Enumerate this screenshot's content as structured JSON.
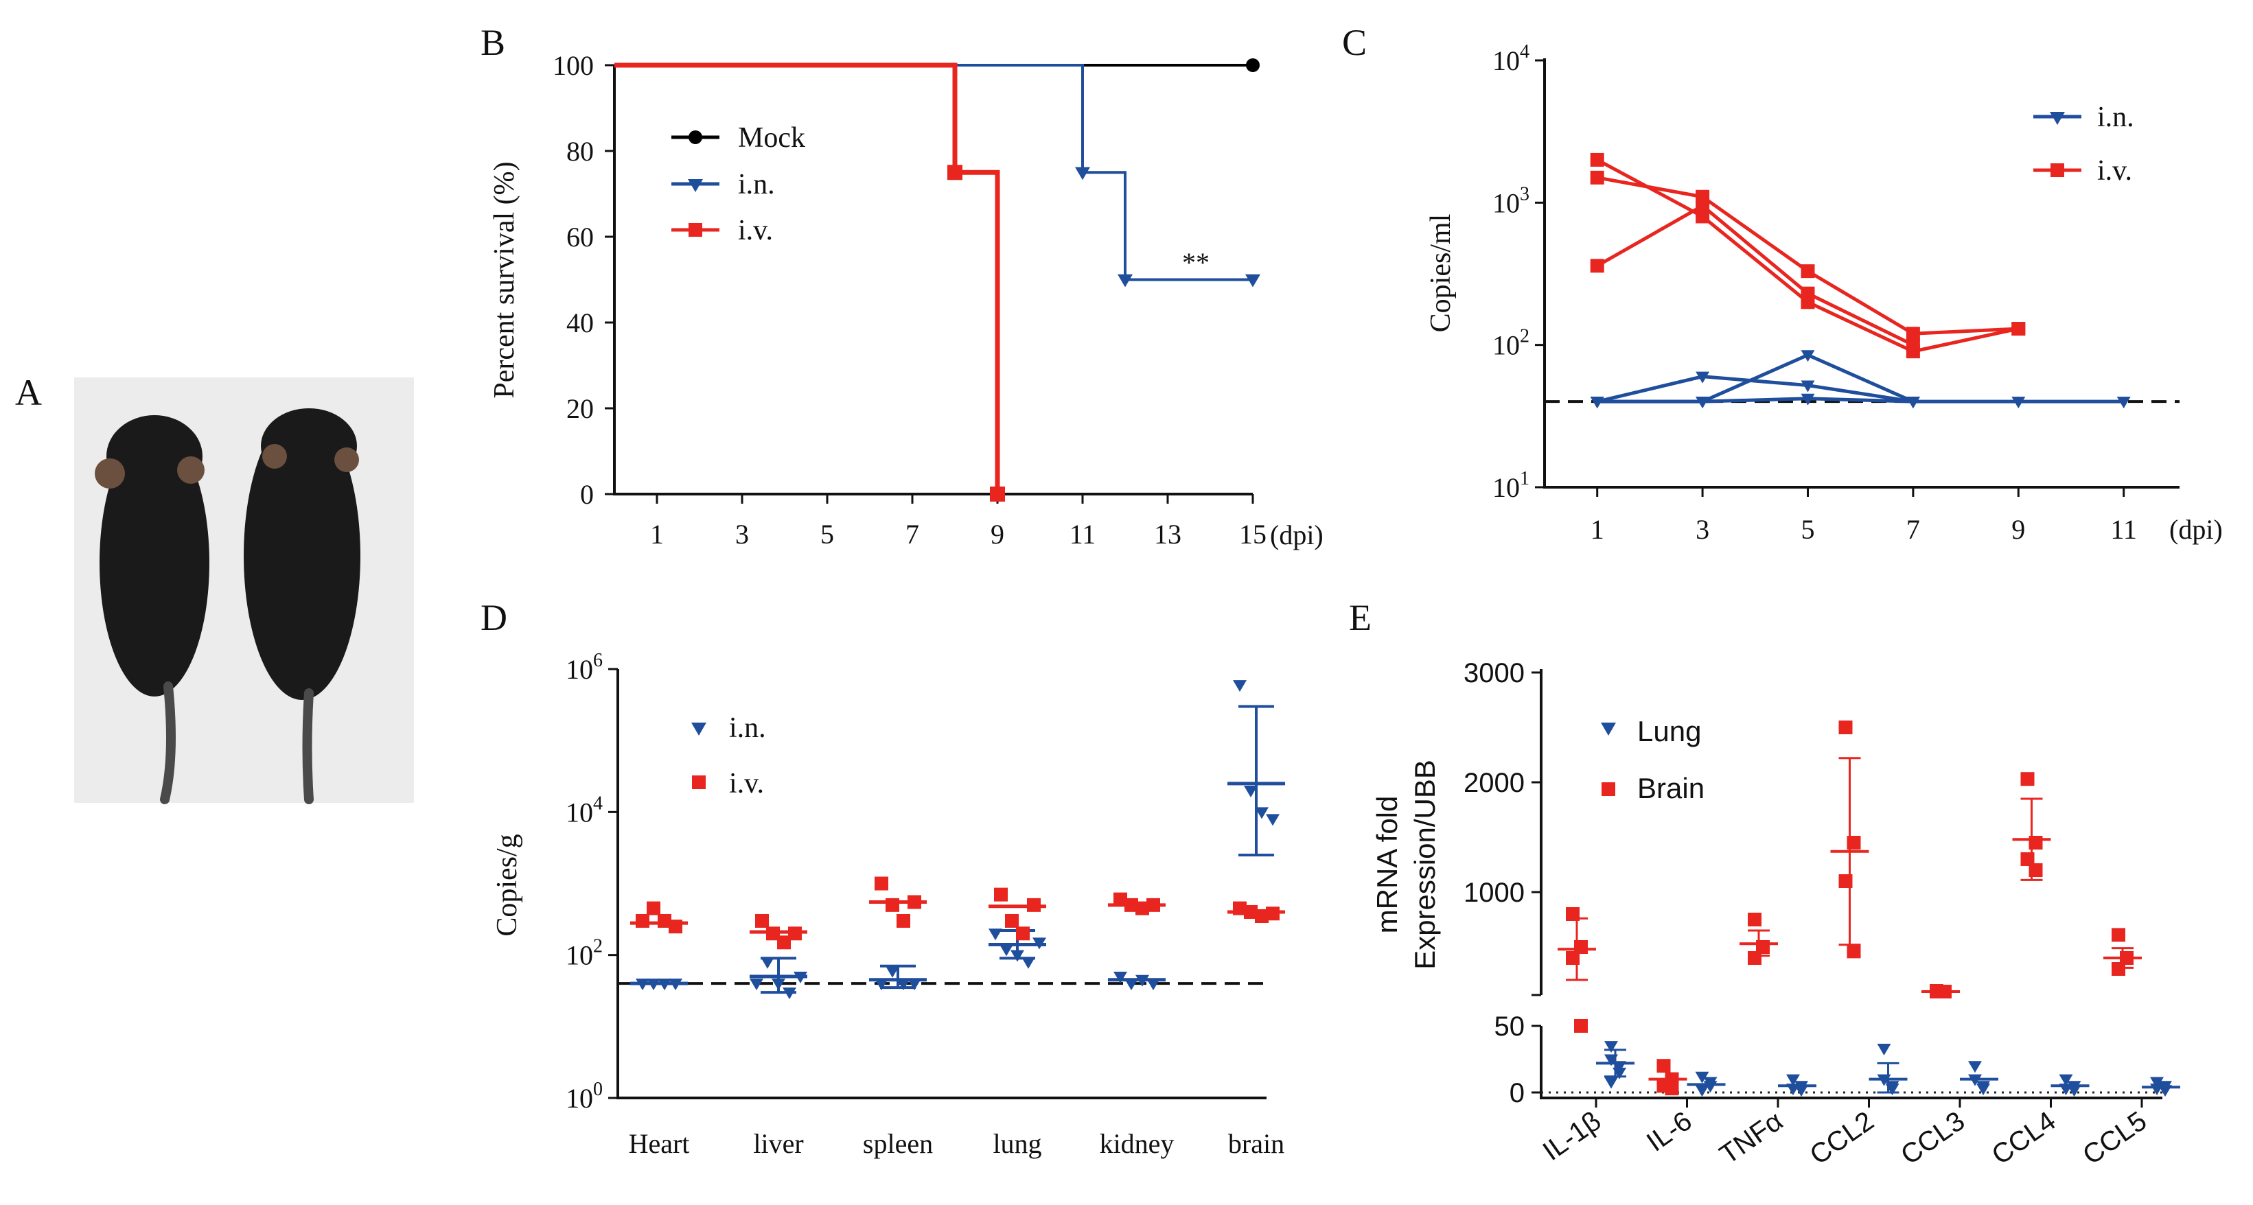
{
  "colors": {
    "mock": "#000000",
    "in": "#1f4e9c",
    "iv": "#e8251f",
    "lung": "#1f4e9c",
    "brain": "#e8251f",
    "photo_bg": "#ececec",
    "mouse": "#1a1a1a"
  },
  "chart_data": [
    {
      "panel": "A",
      "type": "image",
      "subject": "two mice, photograph"
    },
    {
      "panel": "B",
      "type": "line",
      "ylabel": "Percent survival (%)",
      "xlabel": "(dpi)",
      "xticks": [
        "1",
        "3",
        "5",
        "7",
        "9",
        "11",
        "13",
        "15"
      ],
      "yticks": [
        "0",
        "20",
        "40",
        "60",
        "80",
        "100"
      ],
      "xlim": [
        0,
        15
      ],
      "ylim": [
        0,
        100
      ],
      "annotation": "**",
      "series": [
        {
          "name": "Mock",
          "key": "mock",
          "marker": "circle",
          "steps": [
            [
              0,
              100
            ],
            [
              15,
              100
            ]
          ],
          "points": [
            [
              15,
              100
            ]
          ]
        },
        {
          "name": "i.n.",
          "key": "in",
          "marker": "triangle-down",
          "steps": [
            [
              0,
              100
            ],
            [
              11,
              100
            ],
            [
              11,
              75
            ],
            [
              12,
              75
            ],
            [
              12,
              50
            ],
            [
              15,
              50
            ]
          ],
          "points": [
            [
              11,
              75
            ],
            [
              12,
              50
            ],
            [
              15,
              50
            ]
          ]
        },
        {
          "name": "i.v.",
          "key": "iv",
          "marker": "square",
          "steps": [
            [
              0,
              100
            ],
            [
              8,
              100
            ],
            [
              8,
              75
            ],
            [
              9,
              75
            ],
            [
              9,
              0
            ]
          ],
          "points": [
            [
              8,
              75
            ],
            [
              9,
              0
            ]
          ]
        }
      ]
    },
    {
      "panel": "C",
      "type": "line",
      "ylabel": "Copies/ml",
      "xlabel": "(dpi)",
      "yscale": "log",
      "ylim": [
        10,
        10000
      ],
      "yticks": [
        {
          "base": "10",
          "exp": "1"
        },
        {
          "base": "10",
          "exp": "2"
        },
        {
          "base": "10",
          "exp": "3"
        },
        {
          "base": "10",
          "exp": "4"
        }
      ],
      "xticks": [
        "1",
        "3",
        "5",
        "7",
        "9",
        "11"
      ],
      "xlim": [
        0,
        12
      ],
      "detection_limit": 40,
      "series": [
        {
          "name": "i.n.",
          "key": "in",
          "marker": "triangle-down",
          "lines": [
            [
              [
                1,
                40
              ],
              [
                3,
                40
              ],
              [
                5,
                85
              ],
              [
                7,
                40
              ],
              [
                9,
                40
              ],
              [
                11,
                40
              ]
            ],
            [
              [
                1,
                40
              ],
              [
                3,
                60
              ],
              [
                5,
                52
              ],
              [
                7,
                40
              ]
            ],
            [
              [
                1,
                40
              ],
              [
                3,
                40
              ],
              [
                5,
                42
              ],
              [
                7,
                40
              ]
            ]
          ]
        },
        {
          "name": "i.v.",
          "key": "iv",
          "marker": "square",
          "lines": [
            [
              [
                1,
                2000
              ],
              [
                3,
                800
              ],
              [
                5,
                200
              ],
              [
                7,
                90
              ],
              [
                9,
                130
              ]
            ],
            [
              [
                1,
                1500
              ],
              [
                3,
                1100
              ],
              [
                5,
                330
              ],
              [
                7,
                120
              ],
              [
                9,
                130
              ]
            ],
            [
              [
                1,
                360
              ],
              [
                3,
                950
              ],
              [
                5,
                230
              ],
              [
                7,
                100
              ]
            ]
          ]
        }
      ]
    },
    {
      "panel": "D",
      "type": "scatter",
      "ylabel": "Copies/g",
      "yscale": "log",
      "ylim": [
        1,
        1000000
      ],
      "yticks": [
        {
          "base": "10",
          "exp": "0"
        },
        {
          "base": "10",
          "exp": "2"
        },
        {
          "base": "10",
          "exp": "4"
        },
        {
          "base": "10",
          "exp": "6"
        }
      ],
      "categories": [
        "Heart",
        "liver",
        "spleen",
        "lung",
        "kidney",
        "brain"
      ],
      "detection_limit": 40,
      "series": [
        {
          "name": "i.n.",
          "key": "in",
          "marker": "triangle-down",
          "groups": [
            {
              "points": [
                40,
                40,
                40,
                40
              ],
              "mean": 40
            },
            {
              "points": [
                40,
                80,
                40,
                30,
                50
              ],
              "mean": 50,
              "sd": [
                30,
                90
              ]
            },
            {
              "points": [
                40,
                60,
                40,
                40
              ],
              "mean": 45,
              "sd": [
                35,
                70
              ]
            },
            {
              "points": [
                200,
                120,
                100,
                80,
                150
              ],
              "mean": 140,
              "sd": [
                90,
                220
              ]
            },
            {
              "points": [
                50,
                40,
                45,
                40
              ],
              "mean": 45
            },
            {
              "points": [
                600000,
                20000,
                10000,
                8000
              ],
              "mean": 25000,
              "sd": [
                2500,
                300000
              ]
            }
          ]
        },
        {
          "name": "i.v.",
          "key": "iv",
          "marker": "square",
          "groups": [
            {
              "points": [
                300,
                450,
                300,
                250
              ],
              "mean": 280
            },
            {
              "points": [
                300,
                200,
                150,
                200
              ],
              "mean": 210
            },
            {
              "points": [
                1000,
                500,
                300,
                550
              ],
              "mean": 550
            },
            {
              "points": [
                700,
                300,
                200,
                500
              ],
              "mean": 480
            },
            {
              "points": [
                600,
                500,
                450,
                500
              ],
              "mean": 500
            },
            {
              "points": [
                450,
                400,
                350,
                380
              ],
              "mean": 400
            }
          ]
        }
      ]
    },
    {
      "panel": "E",
      "type": "scatter",
      "ylabel": [
        "mRNA fold",
        "Expression/UBB"
      ],
      "categories": [
        "IL-1β",
        "IL-6",
        "TNFα",
        "CCL2",
        "CCL3",
        "CCL4",
        "CCL5"
      ],
      "yticks_upper": [
        "1000",
        "2000",
        "3000"
      ],
      "yticks_lower": [
        "0",
        "50"
      ],
      "series": [
        {
          "name": "Lung",
          "key": "lung",
          "marker": "triangle-down",
          "groups": [
            {
              "points": [
                35,
                20,
                25,
                15,
                8
              ],
              "mean": 22,
              "sd": [
                12,
                32
              ]
            },
            {
              "points": [
                12,
                5,
                3,
                8,
                2
              ],
              "mean": 6
            },
            {
              "points": [
                10,
                5,
                3,
                2
              ],
              "mean": 5
            },
            {
              "points": [
                33,
                5,
                10,
                3
              ],
              "mean": 10,
              "sd": [
                0,
                22
              ]
            },
            {
              "points": [
                20,
                5,
                10,
                3
              ],
              "mean": 10
            },
            {
              "points": [
                10,
                5,
                3,
                2
              ],
              "mean": 5
            },
            {
              "points": [
                8,
                5,
                3,
                2
              ],
              "mean": 4
            }
          ]
        },
        {
          "name": "Brain",
          "key": "brain",
          "marker": "square",
          "groups": [
            {
              "points": [
                800,
                500,
                400,
                50
              ],
              "mean": 480,
              "sd": [
                200,
                760
              ]
            },
            {
              "points": [
                20,
                10,
                5,
                3
              ],
              "mean": 10
            },
            {
              "points": [
                750,
                500,
                400
              ],
              "mean": 530,
              "sd": [
                420,
                650
              ]
            },
            {
              "points": [
                2500,
                1450,
                1100,
                460
              ],
              "mean": 1370,
              "sd": [
                520,
                2220
              ]
            },
            {
              "points": [
                100,
                80,
                70
              ],
              "mean": 85
            },
            {
              "points": [
                2030,
                1450,
                1300,
                1200
              ],
              "mean": 1480,
              "sd": [
                1110,
                1850
              ]
            },
            {
              "points": [
                610,
                400,
                300
              ],
              "mean": 400,
              "sd": [
                310,
                490
              ]
            }
          ]
        }
      ]
    }
  ]
}
